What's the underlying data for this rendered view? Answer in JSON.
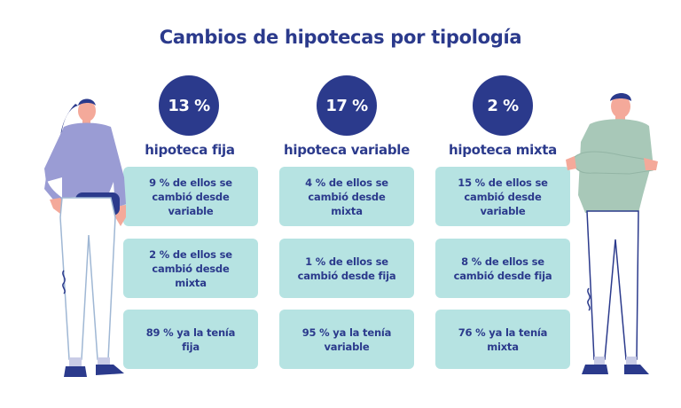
{
  "title": "Cambios de hipotecas por tipología",
  "columns": [
    {
      "percent": "13 %",
      "label": "hipoteca fija",
      "cards": [
        "9 % de ellos se cambió desde variable",
        "2 % de ellos se cambió desde mixta",
        "89 % ya la tenía fija"
      ]
    },
    {
      "percent": "17 %",
      "label": "hipoteca variable",
      "cards": [
        "4 % de ellos se cambió desde mixta",
        "1 % de ellos se cambió desde fija",
        "95 % ya la tenía variable"
      ]
    },
    {
      "percent": "2 %",
      "label": "hipoteca mixta",
      "cards": [
        "15 % de ellos se cambió desde variable",
        "8 % de ellos se cambió desde fija",
        "76 % ya la tenía mixta"
      ]
    }
  ],
  "colors": {
    "accent": "#2b3a8c",
    "card": "#b6e3e2",
    "woman_sweater": "#9a9cd4",
    "man_sweater": "#a8c8b8"
  },
  "icons": [
    "woman-illustration",
    "man-illustration"
  ]
}
